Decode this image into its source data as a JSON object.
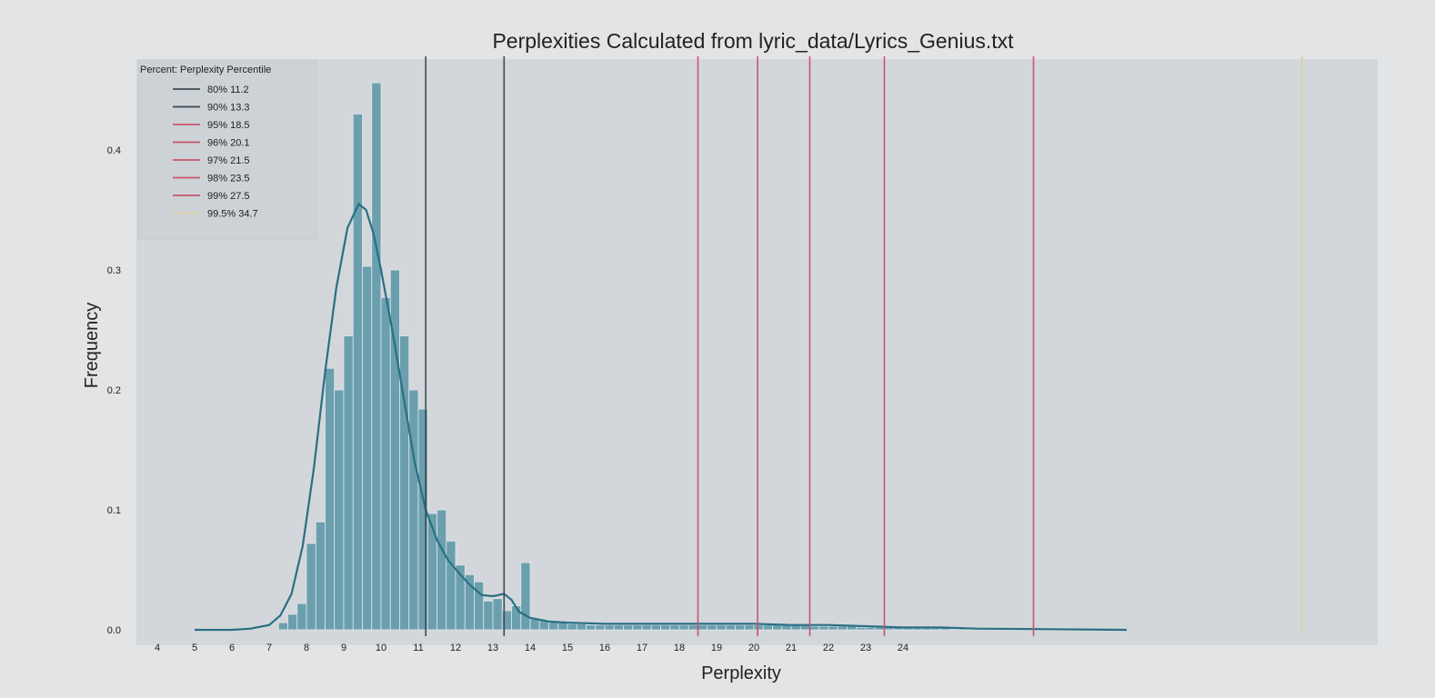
{
  "chart_data": {
    "type": "bar",
    "title": "Perplexities Calculated from lyric_data/Lyrics_Genius.txt",
    "xlabel": "Perplexity",
    "ylabel": "Frequency",
    "xlim": [
      4,
      38
    ],
    "ylim": [
      0,
      0.47
    ],
    "xticks": [
      4,
      5,
      6,
      7,
      8,
      9,
      10,
      11,
      12,
      13,
      14,
      15,
      16,
      17,
      18,
      19,
      20,
      21,
      22,
      23,
      24
    ],
    "yticks": [
      {
        "value": 0.0,
        "label": "0.0"
      },
      {
        "value": 0.1,
        "label": "0.1"
      },
      {
        "value": 0.2,
        "label": "0.2"
      },
      {
        "value": 0.3,
        "label": "0.3"
      },
      {
        "value": 0.4,
        "label": "0.4"
      }
    ],
    "grid": false,
    "colors": {
      "bar": "#6b9fae",
      "bar_edge": "#dfe6e9",
      "kde": "#2a6f84",
      "plot_bg": "#cfd4d8",
      "dark_line": "#3d4a52",
      "red_line": "#c9546a",
      "yellow_line": "#d8d0a4"
    },
    "histogram": {
      "bin_width": 0.25,
      "bins": [
        {
          "x": 7.25,
          "y": 0.006
        },
        {
          "x": 7.5,
          "y": 0.013
        },
        {
          "x": 7.75,
          "y": 0.022
        },
        {
          "x": 8.0,
          "y": 0.072
        },
        {
          "x": 8.25,
          "y": 0.09
        },
        {
          "x": 8.5,
          "y": 0.218
        },
        {
          "x": 8.75,
          "y": 0.2
        },
        {
          "x": 9.0,
          "y": 0.245
        },
        {
          "x": 9.25,
          "y": 0.43
        },
        {
          "x": 9.5,
          "y": 0.303
        },
        {
          "x": 9.75,
          "y": 0.456
        },
        {
          "x": 10.0,
          "y": 0.277
        },
        {
          "x": 10.25,
          "y": 0.3
        },
        {
          "x": 10.5,
          "y": 0.245
        },
        {
          "x": 10.75,
          "y": 0.2
        },
        {
          "x": 11.0,
          "y": 0.184
        },
        {
          "x": 11.25,
          "y": 0.097
        },
        {
          "x": 11.5,
          "y": 0.1
        },
        {
          "x": 11.75,
          "y": 0.074
        },
        {
          "x": 12.0,
          "y": 0.054
        },
        {
          "x": 12.25,
          "y": 0.046
        },
        {
          "x": 12.5,
          "y": 0.04
        },
        {
          "x": 12.75,
          "y": 0.024
        },
        {
          "x": 13.0,
          "y": 0.026
        },
        {
          "x": 13.25,
          "y": 0.016
        },
        {
          "x": 13.5,
          "y": 0.02
        },
        {
          "x": 13.75,
          "y": 0.056
        },
        {
          "x": 14.0,
          "y": 0.009
        },
        {
          "x": 14.25,
          "y": 0.008
        },
        {
          "x": 14.5,
          "y": 0.007
        },
        {
          "x": 14.75,
          "y": 0.006
        },
        {
          "x": 15.0,
          "y": 0.005
        },
        {
          "x": 15.25,
          "y": 0.005
        },
        {
          "x": 15.5,
          "y": 0.004
        },
        {
          "x": 15.75,
          "y": 0.004
        },
        {
          "x": 16.0,
          "y": 0.004
        },
        {
          "x": 16.25,
          "y": 0.004
        },
        {
          "x": 16.5,
          "y": 0.004
        },
        {
          "x": 16.75,
          "y": 0.004
        },
        {
          "x": 17.0,
          "y": 0.004
        },
        {
          "x": 17.25,
          "y": 0.004
        },
        {
          "x": 17.5,
          "y": 0.004
        },
        {
          "x": 17.75,
          "y": 0.004
        },
        {
          "x": 18.0,
          "y": 0.004
        },
        {
          "x": 18.25,
          "y": 0.004
        },
        {
          "x": 18.5,
          "y": 0.004
        },
        {
          "x": 18.75,
          "y": 0.004
        },
        {
          "x": 19.0,
          "y": 0.004
        },
        {
          "x": 19.25,
          "y": 0.004
        },
        {
          "x": 19.5,
          "y": 0.004
        },
        {
          "x": 19.75,
          "y": 0.004
        },
        {
          "x": 20.0,
          "y": 0.004
        },
        {
          "x": 20.25,
          "y": 0.004
        },
        {
          "x": 20.5,
          "y": 0.004
        },
        {
          "x": 20.75,
          "y": 0.004
        },
        {
          "x": 21.0,
          "y": 0.004
        },
        {
          "x": 21.25,
          "y": 0.004
        },
        {
          "x": 21.5,
          "y": 0.003
        },
        {
          "x": 21.75,
          "y": 0.003
        },
        {
          "x": 22.0,
          "y": 0.003
        },
        {
          "x": 22.25,
          "y": 0.003
        },
        {
          "x": 22.5,
          "y": 0.003
        },
        {
          "x": 22.75,
          "y": 0.002
        },
        {
          "x": 23.0,
          "y": 0.002
        },
        {
          "x": 23.25,
          "y": 0.002
        },
        {
          "x": 23.5,
          "y": 0.002
        },
        {
          "x": 23.75,
          "y": 0.002
        },
        {
          "x": 24.0,
          "y": 0.002
        },
        {
          "x": 24.25,
          "y": 0.002
        },
        {
          "x": 24.5,
          "y": 0.002
        },
        {
          "x": 24.75,
          "y": 0.002
        },
        {
          "x": 25.0,
          "y": 0.002
        },
        {
          "x": 25.5,
          "y": 0.001
        },
        {
          "x": 26.0,
          "y": 0.001
        },
        {
          "x": 26.5,
          "y": 0.001
        },
        {
          "x": 27.0,
          "y": 0.001
        },
        {
          "x": 27.5,
          "y": 0.001
        }
      ]
    },
    "kde": {
      "x": [
        5,
        6,
        6.5,
        7,
        7.3,
        7.6,
        7.9,
        8.2,
        8.5,
        8.8,
        9.1,
        9.4,
        9.6,
        9.8,
        10.0,
        10.3,
        10.6,
        10.9,
        11.2,
        11.5,
        11.8,
        12.1,
        12.4,
        12.7,
        13.0,
        13.3,
        13.5,
        13.7,
        14.0,
        14.5,
        15,
        16,
        17,
        18,
        19,
        20,
        21,
        22,
        23,
        24,
        25,
        26,
        28,
        30
      ],
      "y": [
        0.0,
        0.0,
        0.001,
        0.004,
        0.012,
        0.03,
        0.07,
        0.135,
        0.215,
        0.285,
        0.335,
        0.355,
        0.35,
        0.33,
        0.3,
        0.25,
        0.195,
        0.14,
        0.1,
        0.075,
        0.058,
        0.047,
        0.037,
        0.029,
        0.028,
        0.03,
        0.025,
        0.015,
        0.01,
        0.007,
        0.006,
        0.005,
        0.005,
        0.005,
        0.005,
        0.005,
        0.004,
        0.004,
        0.003,
        0.002,
        0.002,
        0.001,
        0.0005,
        0.0
      ]
    },
    "percentile_lines": [
      {
        "percent": "80%",
        "value": 11.2,
        "label": "11.2",
        "color": "#3d4a52"
      },
      {
        "percent": "90%",
        "value": 13.3,
        "label": "13.3",
        "color": "#3d4a52"
      },
      {
        "percent": "95%",
        "value": 18.5,
        "label": "18.5",
        "color": "#c9546a"
      },
      {
        "percent": "96%",
        "value": 20.1,
        "label": "20.1",
        "color": "#c9546a"
      },
      {
        "percent": "97%",
        "value": 21.5,
        "label": "21.5",
        "color": "#c9546a"
      },
      {
        "percent": "98%",
        "value": 23.5,
        "label": "23.5",
        "color": "#c9546a"
      },
      {
        "percent": "99%",
        "value": 27.5,
        "label": "27.5",
        "color": "#c9546a"
      },
      {
        "percent": "99.5%",
        "value": 34.7,
        "label": "34.7",
        "color": "#d8d0a4"
      }
    ],
    "legend": {
      "title": "Percent: Perplexity Percentile",
      "placement": "top-left"
    }
  }
}
